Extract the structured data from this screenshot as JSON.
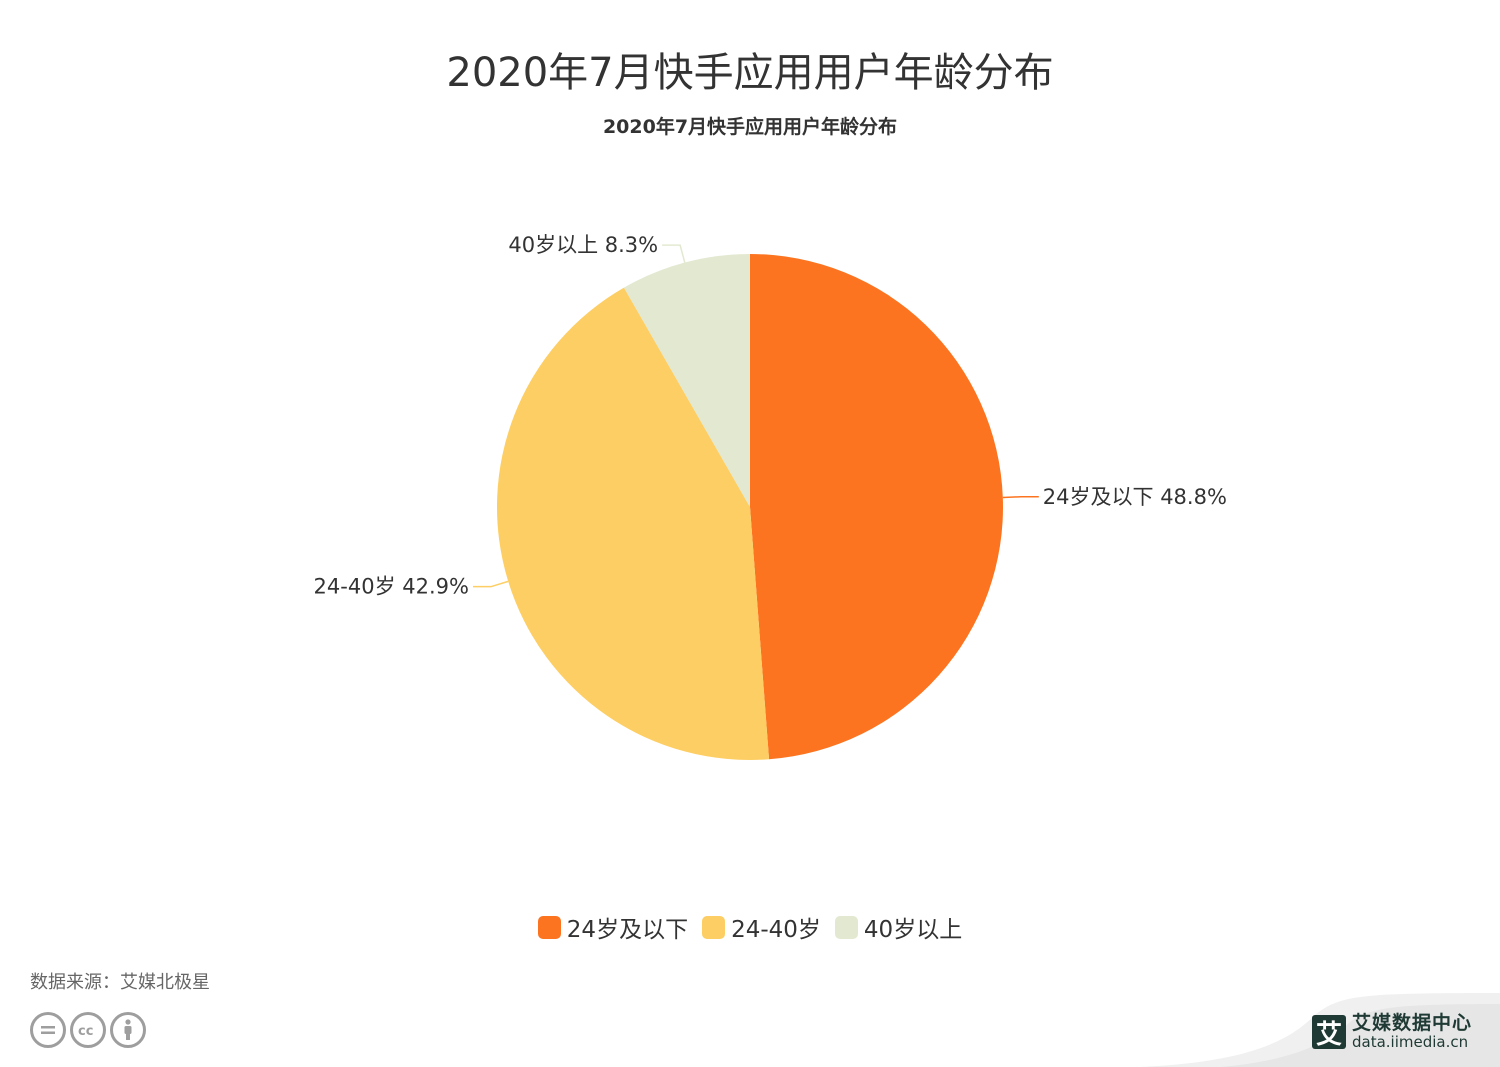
{
  "header": {
    "title": "2020年7月快手应用用户年龄分布",
    "subtitle": "2020年7月快手应用用户年龄分布"
  },
  "chart_data": {
    "type": "pie",
    "title": "2020年7月快手应用用户年龄分布",
    "subtitle": "2020年7月快手应用用户年龄分布",
    "categories": [
      "24岁及以下",
      "24-40岁",
      "40岁以上"
    ],
    "values": [
      48.8,
      42.9,
      8.3
    ],
    "unit": "%",
    "colors": [
      "#fd7420",
      "#fdce63",
      "#e2e9d0"
    ],
    "labels": [
      "24岁及以下 48.8%",
      "24-40岁 42.9%",
      "40岁以上 8.3%"
    ],
    "start_angle": "12 o'clock, clockwise",
    "legend_position": "bottom"
  },
  "legend": {
    "items": [
      {
        "label": "24岁及以下",
        "color": "#fd7420"
      },
      {
        "label": "24-40岁",
        "color": "#fdce63"
      },
      {
        "label": "40岁以上",
        "color": "#e2e9d0"
      }
    ]
  },
  "footer": {
    "source": "数据来源：艾媒北极星",
    "cc_icons": [
      "nd-icon",
      "cc-icon",
      "by-icon"
    ],
    "brand_logo_char": "艾",
    "brand_name": "艾媒数据中心",
    "brand_url": "data.iimedia.cn"
  }
}
